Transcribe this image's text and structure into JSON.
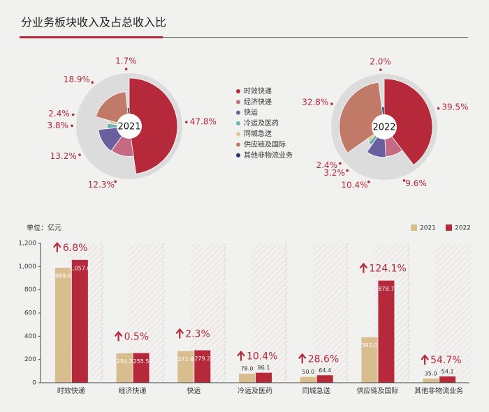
{
  "title": "分业务板块收入及占总收入比",
  "chart_data": [
    {
      "type": "pie",
      "title": "2021",
      "categories": [
        "时效快递",
        "经济快递",
        "快运",
        "冷运及医药",
        "同城急送",
        "供应链及国际",
        "其他非物流业务"
      ],
      "colors": [
        "#b5293a",
        "#c46a82",
        "#6b5fa0",
        "#6fb3b0",
        "#e2c78e",
        "#c27a68",
        "#26386b"
      ],
      "values": [
        47.8,
        12.3,
        13.2,
        3.8,
        2.4,
        18.9,
        1.7
      ],
      "value_labels": [
        "47.8%",
        "12.3%",
        "13.2%",
        "3.8%",
        "2.4%",
        "18.9%",
        "1.7%"
      ]
    },
    {
      "type": "pie",
      "title": "2022",
      "values": [
        39.5,
        9.6,
        10.4,
        3.2,
        2.4,
        32.8,
        2.0
      ],
      "value_labels": [
        "39.5%",
        "9.6%",
        "10.4%",
        "3.2%",
        "2.4%",
        "32.8%",
        "2.0%"
      ]
    },
    {
      "type": "bar",
      "y_label": "单位：亿元",
      "categories": [
        "时效快递",
        "经济快递",
        "快运",
        "冷运及医药",
        "同城急送",
        "供应链及国际",
        "其他非物流业务"
      ],
      "series": [
        {
          "name": "2021",
          "color": "#d8bd8f",
          "values": [
            989.6,
            254.3,
            272.9,
            78.0,
            50.0,
            392.0,
            35.0
          ],
          "value_labels": [
            "989.6",
            "254.3",
            "272.9",
            "78.0",
            "50.0",
            "392.0",
            "35.0"
          ]
        },
        {
          "name": "2022",
          "color": "#b5293a",
          "values": [
            1057.0,
            255.5,
            279.2,
            86.1,
            64.4,
            878.7,
            54.1
          ],
          "value_labels": [
            "1,057.0",
            "255.5",
            "279.2",
            "86.1",
            "64.4",
            "878.7",
            "54.1"
          ]
        }
      ],
      "growth": {
        "values": [
          6.8,
          0.5,
          2.3,
          10.4,
          28.6,
          124.1,
          54.7
        ],
        "value_labels": [
          "6.8%",
          "0.5%",
          "2.3%",
          "10.4%",
          "28.6%",
          "124.1%",
          "54.7%"
        ]
      },
      "ylim": [
        0,
        1200
      ],
      "yticks": [
        0,
        200,
        400,
        600,
        800,
        {
          "value": 1000,
          "label": "1,000"
        },
        {
          "value": 1200,
          "label": "1,200"
        }
      ]
    }
  ]
}
